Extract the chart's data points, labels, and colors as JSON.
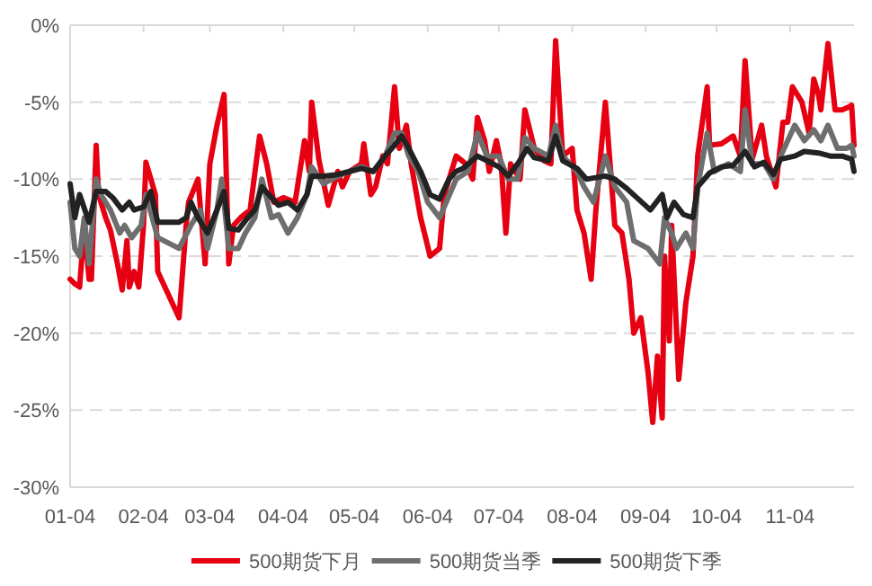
{
  "chart_data": {
    "type": "line",
    "ylim": [
      -30,
      0
    ],
    "yticks": [
      {
        "value": -30,
        "label": "-30%"
      },
      {
        "value": -25,
        "label": "-25%"
      },
      {
        "value": -20,
        "label": "-20%"
      },
      {
        "value": -15,
        "label": "-15%"
      },
      {
        "value": -10,
        "label": "-10%"
      },
      {
        "value": -5,
        "label": "-5%"
      },
      {
        "value": 0,
        "label": "0%"
      }
    ],
    "xlim": [
      "--01-04",
      "--12-01"
    ],
    "xticks": [
      {
        "value": "--01-04",
        "label": "01-04"
      },
      {
        "value": "--02-04",
        "label": "02-04"
      },
      {
        "value": "--03-04",
        "label": "03-04"
      },
      {
        "value": "--04-04",
        "label": "04-04"
      },
      {
        "value": "--05-04",
        "label": "05-04"
      },
      {
        "value": "--06-04",
        "label": "06-04"
      },
      {
        "value": "--07-04",
        "label": "07-04"
      },
      {
        "value": "--08-04",
        "label": "08-04"
      },
      {
        "value": "--09-04",
        "label": "09-04"
      },
      {
        "value": "--10-04",
        "label": "10-04"
      },
      {
        "value": "--11-04",
        "label": "11-04"
      }
    ],
    "grid": "y",
    "legend": "bottom",
    "marker": "none",
    "line_style": "solid",
    "series": [
      {
        "name": "500期货下月",
        "color": "#e60012",
        "x": [
          "--01-04",
          "--01-06",
          "--01-08",
          "--01-10",
          "--01-12",
          "--01-13",
          "--01-15",
          "--01-16",
          "--01-19",
          "--01-21",
          "--01-24",
          "--01-26",
          "--01-28",
          "--01-29",
          "--01-31",
          "--02-02",
          "--02-04",
          "--02-05",
          "--02-09",
          "--02-10",
          "--02-19",
          "--02-22",
          "--02-23",
          "--02-27",
          "--03-02",
          "--03-04",
          "--03-07",
          "--03-10",
          "--03-12",
          "--03-14",
          "--03-17",
          "--03-21",
          "--03-25",
          "--03-28",
          "--03-31",
          "--04-04",
          "--04-09",
          "--04-13",
          "--04-15",
          "--04-16",
          "--04-19",
          "--04-23",
          "--04-27",
          "--04-29",
          "--05-02",
          "--05-07",
          "--05-08",
          "--05-11",
          "--05-13",
          "--05-16",
          "--05-18",
          "--05-21",
          "--05-23",
          "--05-26",
          "--05-28",
          "--06-01",
          "--06-05",
          "--06-09",
          "--06-11",
          "--06-16",
          "--06-20",
          "--06-23",
          "--06-25",
          "--06-28",
          "--06-30",
          "--07-03",
          "--07-05",
          "--07-07",
          "--07-09",
          "--07-13",
          "--07-15",
          "--07-19",
          "--07-23",
          "--07-26",
          "--07-28",
          "--07-31",
          "--08-04",
          "--08-06",
          "--08-09",
          "--08-12",
          "--08-14",
          "--08-18",
          "--08-22",
          "--08-25",
          "--08-28",
          "--08-30",
          "--09-02",
          "--09-05",
          "--09-07",
          "--09-09",
          "--09-11",
          "--09-12",
          "--09-14",
          "--09-15",
          "--09-18",
          "--09-21",
          "--09-24",
          "--09-26",
          "--09-30",
          "--10-01",
          "--10-06",
          "--10-11",
          "--10-14",
          "--10-16",
          "--10-19",
          "--10-23",
          "--10-25",
          "--10-29",
          "--11-01",
          "--11-03",
          "--11-05",
          "--11-09",
          "--11-12",
          "--11-14",
          "--11-16",
          "--11-17",
          "--11-20",
          "--11-23",
          "--11-26",
          "--11-29",
          "--11-30",
          "--12-01"
        ],
        "values": [
          -16.5,
          -16.8,
          -17,
          -13,
          -16.5,
          -16.5,
          -7.8,
          -11,
          -12.5,
          -13.3,
          -15.5,
          -17.2,
          -14,
          -17,
          -16,
          -17,
          -13,
          -8.9,
          -11,
          -16,
          -19,
          -13,
          -11.5,
          -10,
          -15.5,
          -9,
          -6.5,
          -4.5,
          -15.5,
          -13,
          -12.5,
          -12,
          -7.2,
          -9,
          -11.5,
          -11.2,
          -11.5,
          -7.5,
          -9.5,
          -5,
          -8.7,
          -11.7,
          -9.5,
          -10.5,
          -9.5,
          -9,
          -7.7,
          -11,
          -10.5,
          -8.5,
          -9,
          -4,
          -8,
          -6.5,
          -9,
          -12.5,
          -15,
          -14.5,
          -11,
          -8.5,
          -9,
          -10,
          -6,
          -7.5,
          -9.5,
          -7.5,
          -9,
          -13.5,
          -9,
          -10,
          -5.5,
          -8,
          -8.8,
          -9,
          -1,
          -8.5,
          -8,
          -12,
          -13.5,
          -16.5,
          -12,
          -5,
          -13,
          -13.5,
          -16.5,
          -20,
          -19,
          -22.5,
          -25.8,
          -21.5,
          -25.5,
          -15,
          -20.5,
          -13,
          -23,
          -18,
          -15,
          -8.5,
          -4,
          -7.8,
          -7.7,
          -7.2,
          -8.5,
          -2.3,
          -8.7,
          -6.5,
          -8.5,
          -10.5,
          -6.3,
          -6.3,
          -4,
          -5,
          -7,
          -3.5,
          -4.5,
          -5.5,
          -1.2,
          -5.5,
          -5.5,
          -5.3,
          -5.2,
          -7.8
        ]
      },
      {
        "name": "500期货当季",
        "color": "#6e6e6e",
        "x": [
          "--01-04",
          "--01-06",
          "--01-08",
          "--01-10",
          "--01-12",
          "--01-15",
          "--01-17",
          "--01-21",
          "--01-25",
          "--01-27",
          "--01-30",
          "--02-03",
          "--02-05",
          "--02-10",
          "--02-19",
          "--02-24",
          "--02-28",
          "--03-03",
          "--03-07",
          "--03-09",
          "--03-12",
          "--03-16",
          "--03-19",
          "--03-23",
          "--03-26",
          "--03-30",
          "--04-02",
          "--04-06",
          "--04-10",
          "--04-14",
          "--04-16",
          "--04-21",
          "--04-27",
          "--05-02",
          "--05-07",
          "--05-12",
          "--05-17",
          "--05-21",
          "--05-24",
          "--05-27",
          "--05-31",
          "--06-04",
          "--06-09",
          "--06-16",
          "--06-21",
          "--06-25",
          "--06-29",
          "--07-04",
          "--07-08",
          "--07-12",
          "--07-15",
          "--07-19",
          "--07-25",
          "--07-28",
          "--07-31",
          "--08-06",
          "--08-09",
          "--08-13",
          "--08-18",
          "--08-22",
          "--08-27",
          "--08-30",
          "--09-05",
          "--09-10",
          "--09-12",
          "--09-15",
          "--09-17",
          "--09-21",
          "--09-24",
          "--09-26",
          "--09-30",
          "--10-03",
          "--10-09",
          "--10-14",
          "--10-16",
          "--10-19",
          "--10-24",
          "--10-28",
          "--10-31",
          "--11-06",
          "--11-10",
          "--11-14",
          "--11-17",
          "--11-20",
          "--11-24",
          "--11-28",
          "--11-30",
          "--12-01"
        ],
        "values": [
          -11.5,
          -14.5,
          -15,
          -12.5,
          -15.5,
          -10,
          -11,
          -12,
          -13.5,
          -13,
          -13.8,
          -13,
          -11,
          -13.8,
          -14.5,
          -13,
          -12,
          -14.5,
          -12,
          -10,
          -14.5,
          -14.5,
          -13.5,
          -12.5,
          -10,
          -12.5,
          -12.3,
          -13.5,
          -12.5,
          -11,
          -9.2,
          -10.3,
          -9.8,
          -9.5,
          -9.2,
          -9.5,
          -8.5,
          -7,
          -7,
          -8.5,
          -9.5,
          -11.5,
          -12.5,
          -10,
          -9.5,
          -7,
          -8.5,
          -8.5,
          -10,
          -10,
          -7.3,
          -8,
          -8.5,
          -6.5,
          -8.5,
          -9.5,
          -10.5,
          -11.5,
          -8.5,
          -10.5,
          -11.5,
          -14,
          -14.5,
          -15.5,
          -12.5,
          -13.5,
          -14.5,
          -13.5,
          -14.5,
          -10.5,
          -7,
          -9.5,
          -9,
          -9.5,
          -5.5,
          -9,
          -9,
          -10,
          -8.5,
          -6.5,
          -7.5,
          -6.8,
          -7.5,
          -6.5,
          -8,
          -8,
          -7.8,
          -8.5
        ]
      },
      {
        "name": "500期货下季",
        "color": "#222222",
        "x": [
          "--01-04",
          "--01-06",
          "--01-08",
          "--01-12",
          "--01-15",
          "--01-19",
          "--01-22",
          "--01-26",
          "--01-29",
          "--01-31",
          "--02-04",
          "--02-07",
          "--02-10",
          "--02-19",
          "--02-22",
          "--02-24",
          "--02-27",
          "--03-03",
          "--03-07",
          "--03-10",
          "--03-12",
          "--03-16",
          "--03-19",
          "--03-23",
          "--03-26",
          "--03-30",
          "--04-02",
          "--04-06",
          "--04-10",
          "--04-14",
          "--04-16",
          "--04-21",
          "--04-27",
          "--05-02",
          "--05-07",
          "--05-12",
          "--05-17",
          "--05-21",
          "--05-24",
          "--05-27",
          "--06-01",
          "--06-05",
          "--06-09",
          "--06-13",
          "--06-16",
          "--06-19",
          "--06-25",
          "--06-29",
          "--07-04",
          "--07-08",
          "--07-12",
          "--07-16",
          "--07-19",
          "--07-25",
          "--07-28",
          "--07-31",
          "--08-06",
          "--08-10",
          "--08-18",
          "--08-22",
          "--08-27",
          "--09-01",
          "--09-06",
          "--09-11",
          "--09-13",
          "--09-16",
          "--09-20",
          "--09-24",
          "--09-26",
          "--10-01",
          "--10-06",
          "--10-11",
          "--10-16",
          "--10-20",
          "--10-24",
          "--10-28",
          "--10-31",
          "--11-06",
          "--11-10",
          "--11-16",
          "--11-21",
          "--11-26",
          "--11-30",
          "--12-01"
        ],
        "values": [
          -10.3,
          -12.5,
          -11,
          -12.8,
          -10.8,
          -10.8,
          -11.2,
          -12,
          -11.5,
          -12,
          -11.8,
          -10.8,
          -12.8,
          -12.8,
          -12.5,
          -11.5,
          -12.5,
          -13.5,
          -12,
          -10.8,
          -13.2,
          -13.3,
          -12.7,
          -12,
          -10.5,
          -11.2,
          -11.7,
          -11.5,
          -12,
          -11,
          -9.8,
          -9.8,
          -9.7,
          -9.5,
          -9.3,
          -9.5,
          -8.5,
          -7.8,
          -7.2,
          -8,
          -9.5,
          -11,
          -11.3,
          -10,
          -9.5,
          -9.3,
          -8.5,
          -8.8,
          -9.2,
          -9.8,
          -9,
          -8,
          -8.6,
          -8.8,
          -7.2,
          -8.8,
          -9.3,
          -10,
          -9.8,
          -10,
          -10.6,
          -11.3,
          -12,
          -11,
          -12.5,
          -11.5,
          -12.3,
          -12.5,
          -10.5,
          -9.6,
          -9.2,
          -9.1,
          -8.2,
          -9.2,
          -8.9,
          -9.7,
          -8.7,
          -8.5,
          -8.2,
          -8.3,
          -8.5,
          -8.5,
          -8.7,
          -9.5
        ]
      }
    ]
  }
}
